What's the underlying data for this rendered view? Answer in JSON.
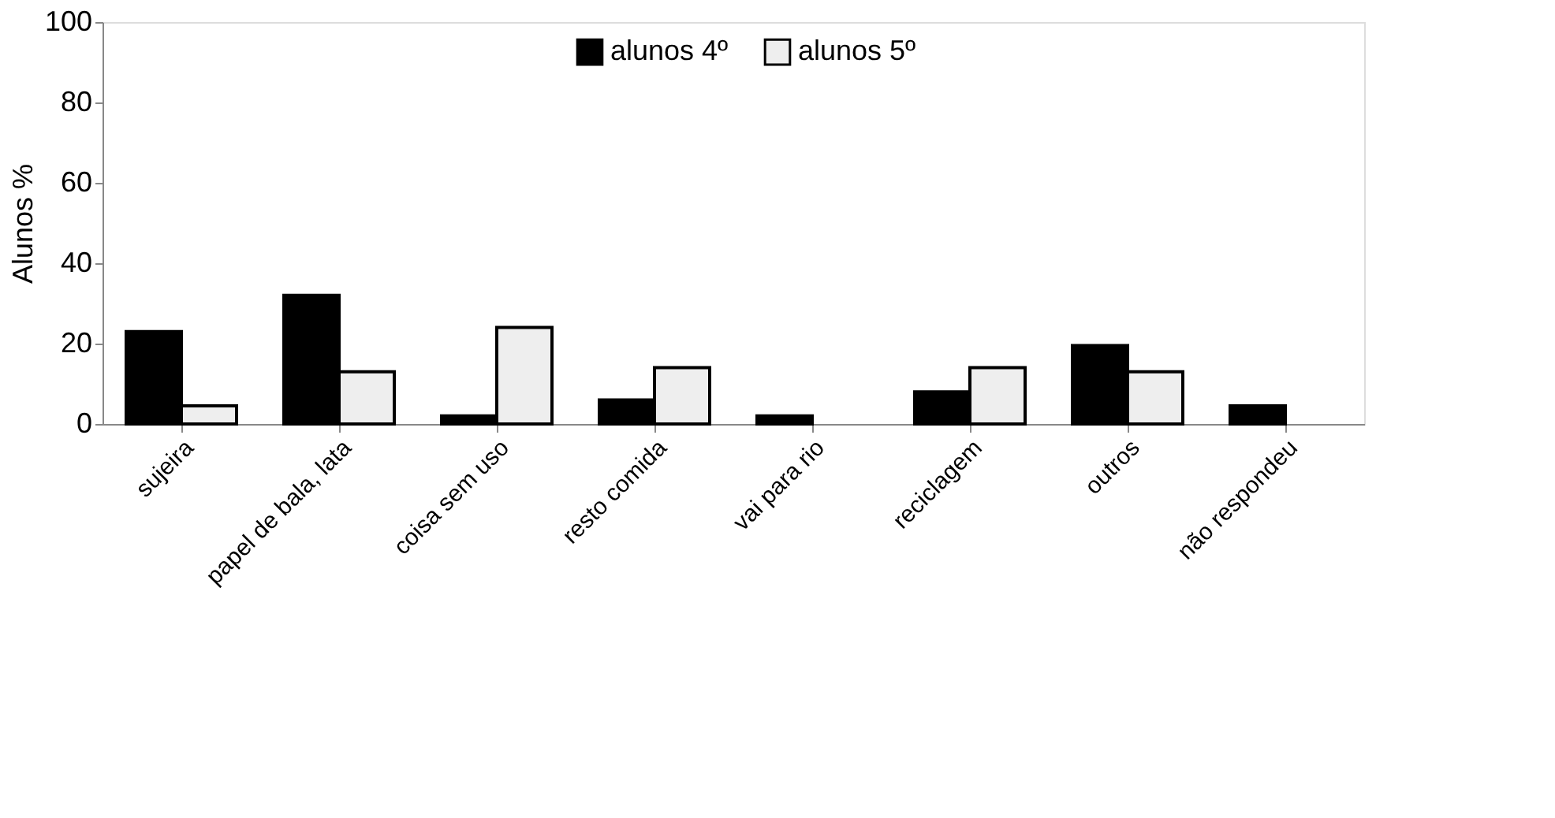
{
  "chart_data": {
    "type": "bar",
    "ylabel": "Alunos %",
    "categories": [
      "sujeira",
      "papel de bala, lata",
      "coisa sem uso",
      "resto comida",
      "vai para rio",
      "reciclagem",
      "outros",
      "não respondeu"
    ],
    "series": [
      {
        "name": "alunos 4º",
        "color": "#000000",
        "values": [
          23,
          32,
          2,
          6,
          2,
          8,
          19.5,
          4.5
        ]
      },
      {
        "name": "alunos 5º",
        "color": "#eeeeee",
        "values": [
          4.5,
          13,
          24,
          14,
          null,
          14,
          13,
          null
        ]
      }
    ],
    "ylim": [
      0,
      100
    ],
    "yticks": [
      0,
      20,
      40,
      60,
      80,
      100
    ],
    "grid": false,
    "legend": "top"
  }
}
